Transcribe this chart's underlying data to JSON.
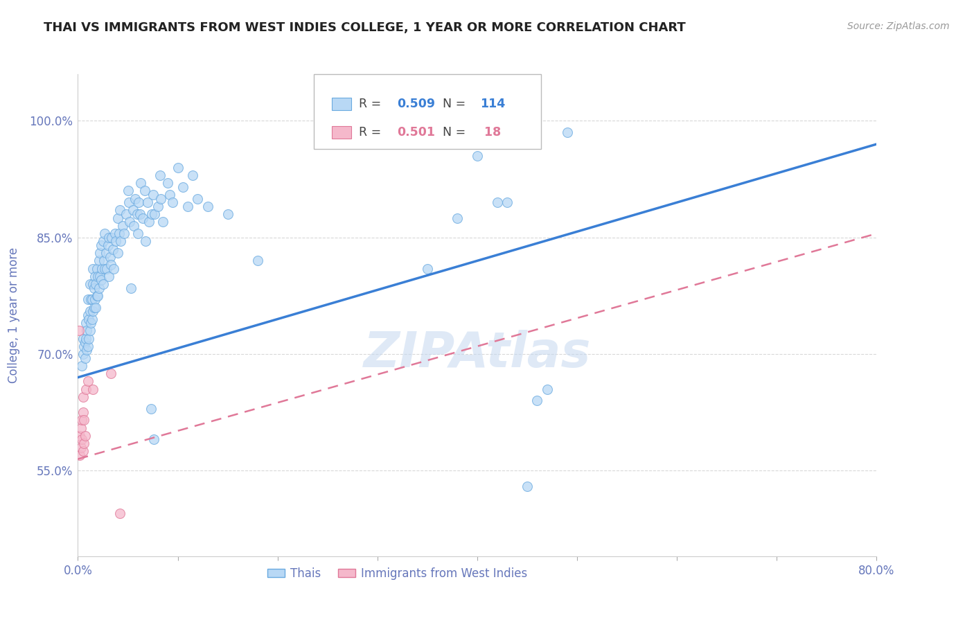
{
  "title": "THAI VS IMMIGRANTS FROM WEST INDIES COLLEGE, 1 YEAR OR MORE CORRELATION CHART",
  "source": "Source: ZipAtlas.com",
  "ylabel": "College, 1 year or more",
  "y_ticks": [
    0.55,
    0.7,
    0.85,
    1.0
  ],
  "y_tick_labels": [
    "55.0%",
    "70.0%",
    "85.0%",
    "100.0%"
  ],
  "x_ticks": [
    0.0,
    0.1,
    0.2,
    0.3,
    0.4,
    0.5,
    0.6,
    0.7,
    0.8
  ],
  "x_tick_labels": [
    "0.0%",
    "",
    "",
    "",
    "",
    "",
    "",
    "",
    "80.0%"
  ],
  "xlim": [
    0.0,
    0.8
  ],
  "ylim": [
    0.44,
    1.06
  ],
  "blue_line_color": "#3a7fd5",
  "pink_line_color": "#e07898",
  "blue_scatter_face": "#b8d8f5",
  "blue_scatter_edge": "#6aaae0",
  "pink_scatter_face": "#f5b8cb",
  "pink_scatter_edge": "#e07898",
  "background_color": "#ffffff",
  "grid_color": "#d8d8d8",
  "title_color": "#222222",
  "ylabel_color": "#6677bb",
  "tick_color": "#6677bb",
  "watermark": "ZIPAtlas",
  "R_blue": "0.509",
  "N_blue": "114",
  "R_pink": "0.501",
  "N_pink": " 18",
  "source_color": "#999999",
  "thai_scatter": [
    [
      0.004,
      0.685
    ],
    [
      0.005,
      0.7
    ],
    [
      0.005,
      0.72
    ],
    [
      0.006,
      0.71
    ],
    [
      0.007,
      0.695
    ],
    [
      0.007,
      0.715
    ],
    [
      0.008,
      0.72
    ],
    [
      0.008,
      0.74
    ],
    [
      0.009,
      0.705
    ],
    [
      0.009,
      0.73
    ],
    [
      0.01,
      0.71
    ],
    [
      0.01,
      0.75
    ],
    [
      0.01,
      0.77
    ],
    [
      0.011,
      0.72
    ],
    [
      0.011,
      0.745
    ],
    [
      0.012,
      0.73
    ],
    [
      0.012,
      0.755
    ],
    [
      0.012,
      0.79
    ],
    [
      0.013,
      0.74
    ],
    [
      0.013,
      0.77
    ],
    [
      0.014,
      0.745
    ],
    [
      0.014,
      0.77
    ],
    [
      0.015,
      0.755
    ],
    [
      0.015,
      0.79
    ],
    [
      0.015,
      0.81
    ],
    [
      0.016,
      0.76
    ],
    [
      0.016,
      0.785
    ],
    [
      0.017,
      0.77
    ],
    [
      0.017,
      0.8
    ],
    [
      0.018,
      0.76
    ],
    [
      0.018,
      0.79
    ],
    [
      0.019,
      0.775
    ],
    [
      0.019,
      0.81
    ],
    [
      0.02,
      0.775
    ],
    [
      0.02,
      0.8
    ],
    [
      0.021,
      0.785
    ],
    [
      0.021,
      0.82
    ],
    [
      0.022,
      0.8
    ],
    [
      0.022,
      0.83
    ],
    [
      0.023,
      0.795
    ],
    [
      0.023,
      0.84
    ],
    [
      0.024,
      0.81
    ],
    [
      0.025,
      0.79
    ],
    [
      0.025,
      0.845
    ],
    [
      0.026,
      0.82
    ],
    [
      0.027,
      0.81
    ],
    [
      0.027,
      0.855
    ],
    [
      0.028,
      0.83
    ],
    [
      0.029,
      0.81
    ],
    [
      0.03,
      0.84
    ],
    [
      0.031,
      0.8
    ],
    [
      0.031,
      0.85
    ],
    [
      0.032,
      0.825
    ],
    [
      0.033,
      0.815
    ],
    [
      0.034,
      0.85
    ],
    [
      0.035,
      0.835
    ],
    [
      0.036,
      0.81
    ],
    [
      0.037,
      0.855
    ],
    [
      0.038,
      0.845
    ],
    [
      0.04,
      0.83
    ],
    [
      0.04,
      0.875
    ],
    [
      0.041,
      0.855
    ],
    [
      0.042,
      0.885
    ],
    [
      0.043,
      0.845
    ],
    [
      0.045,
      0.865
    ],
    [
      0.046,
      0.855
    ],
    [
      0.048,
      0.88
    ],
    [
      0.05,
      0.91
    ],
    [
      0.051,
      0.895
    ],
    [
      0.052,
      0.87
    ],
    [
      0.053,
      0.785
    ],
    [
      0.055,
      0.885
    ],
    [
      0.056,
      0.865
    ],
    [
      0.057,
      0.9
    ],
    [
      0.059,
      0.88
    ],
    [
      0.06,
      0.855
    ],
    [
      0.061,
      0.895
    ],
    [
      0.062,
      0.88
    ],
    [
      0.063,
      0.92
    ],
    [
      0.065,
      0.875
    ],
    [
      0.067,
      0.91
    ],
    [
      0.068,
      0.845
    ],
    [
      0.07,
      0.895
    ],
    [
      0.071,
      0.87
    ],
    [
      0.073,
      0.63
    ],
    [
      0.074,
      0.88
    ],
    [
      0.075,
      0.905
    ],
    [
      0.076,
      0.59
    ],
    [
      0.077,
      0.88
    ],
    [
      0.08,
      0.89
    ],
    [
      0.082,
      0.93
    ],
    [
      0.083,
      0.9
    ],
    [
      0.085,
      0.87
    ],
    [
      0.09,
      0.92
    ],
    [
      0.092,
      0.905
    ],
    [
      0.095,
      0.895
    ],
    [
      0.1,
      0.94
    ],
    [
      0.105,
      0.915
    ],
    [
      0.11,
      0.89
    ],
    [
      0.115,
      0.93
    ],
    [
      0.12,
      0.9
    ],
    [
      0.13,
      0.89
    ],
    [
      0.15,
      0.88
    ],
    [
      0.18,
      0.82
    ],
    [
      0.35,
      0.81
    ],
    [
      0.38,
      0.875
    ],
    [
      0.4,
      0.955
    ],
    [
      0.42,
      0.895
    ],
    [
      0.43,
      0.895
    ],
    [
      0.45,
      0.53
    ],
    [
      0.46,
      0.64
    ],
    [
      0.47,
      0.655
    ],
    [
      0.49,
      0.985
    ]
  ],
  "west_indies_scatter": [
    [
      0.001,
      0.73
    ],
    [
      0.002,
      0.595
    ],
    [
      0.002,
      0.57
    ],
    [
      0.003,
      0.605
    ],
    [
      0.003,
      0.58
    ],
    [
      0.004,
      0.615
    ],
    [
      0.004,
      0.59
    ],
    [
      0.005,
      0.625
    ],
    [
      0.005,
      0.645
    ],
    [
      0.005,
      0.575
    ],
    [
      0.006,
      0.615
    ],
    [
      0.006,
      0.585
    ],
    [
      0.007,
      0.595
    ],
    [
      0.008,
      0.655
    ],
    [
      0.01,
      0.665
    ],
    [
      0.015,
      0.655
    ],
    [
      0.033,
      0.675
    ],
    [
      0.042,
      0.495
    ]
  ],
  "blue_line_x": [
    0.0,
    0.8
  ],
  "blue_line_y": [
    0.67,
    0.97
  ],
  "pink_line_x": [
    0.0,
    0.8
  ],
  "pink_line_y": [
    0.565,
    0.855
  ]
}
